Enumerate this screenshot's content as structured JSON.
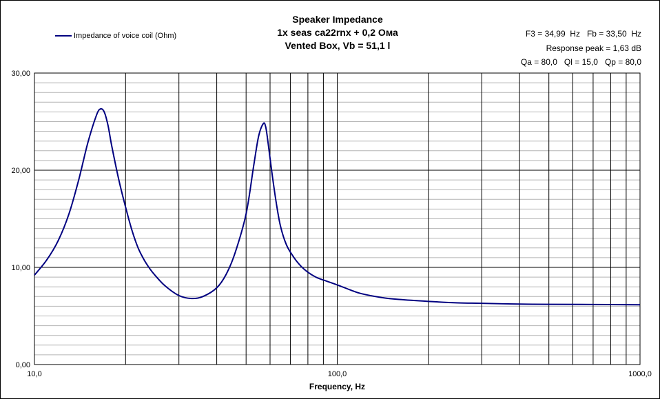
{
  "header": {
    "title_lines": [
      "Speaker Impedance",
      "1x seas ca22rnx + 0,2 Ома",
      "Vented Box, Vb = 51,1 l"
    ]
  },
  "info": {
    "lines": [
      "F3 = 34,99  Hz   Fb = 33,50  Hz",
      "Response peak = 1,63 dB",
      "Qa = 80,0   Ql = 15,0   Qp = 80,0"
    ]
  },
  "legend": {
    "label": "Impedance of voice coil (Ohm)",
    "color": "#000080"
  },
  "colors": {
    "line": "#000080",
    "minor_grid": "#b4b4b4",
    "major_grid": "#000000"
  },
  "chart_data": {
    "type": "line",
    "xscale": "log",
    "xlim": [
      10,
      1000
    ],
    "ylim": [
      0,
      30
    ],
    "xlabel": "Frequency, Hz",
    "ylabel": "",
    "x_tick_labels": [
      "10,0",
      "100,0",
      "1000,0"
    ],
    "x_tick_values": [
      10,
      100,
      1000
    ],
    "y_tick_labels": [
      "0,00",
      "10,00",
      "20,00",
      "30,00"
    ],
    "y_tick_values": [
      0,
      10,
      20,
      30
    ],
    "y_minor_step": 1,
    "grid": true,
    "legend_position": "top-left",
    "series": [
      {
        "name": "Impedance of voice coil (Ohm)",
        "x": [
          10,
          11,
          12,
          13,
          14,
          15,
          16,
          16.5,
          17,
          17.5,
          18,
          19,
          20,
          21,
          22,
          23,
          24,
          25,
          27,
          30,
          33,
          36,
          40,
          43,
          46,
          50,
          53,
          55,
          57,
          58,
          59,
          61,
          63,
          65,
          68,
          72,
          76,
          80,
          85,
          90,
          100,
          110,
          120,
          140,
          160,
          200,
          250,
          300,
          400,
          500,
          700,
          1000
        ],
        "y": [
          9.2,
          10.8,
          12.8,
          15.5,
          19.0,
          22.8,
          25.6,
          26.3,
          26.0,
          24.6,
          22.5,
          19.0,
          16.2,
          13.8,
          12.0,
          10.8,
          9.9,
          9.2,
          8.1,
          7.1,
          6.8,
          7.0,
          7.9,
          9.3,
          11.5,
          15.5,
          20.5,
          23.5,
          24.8,
          24.5,
          23.0,
          19.5,
          16.5,
          14.2,
          12.3,
          11.0,
          10.1,
          9.5,
          9.0,
          8.7,
          8.2,
          7.7,
          7.3,
          6.9,
          6.7,
          6.5,
          6.35,
          6.3,
          6.22,
          6.2,
          6.18,
          6.15
        ]
      }
    ]
  }
}
